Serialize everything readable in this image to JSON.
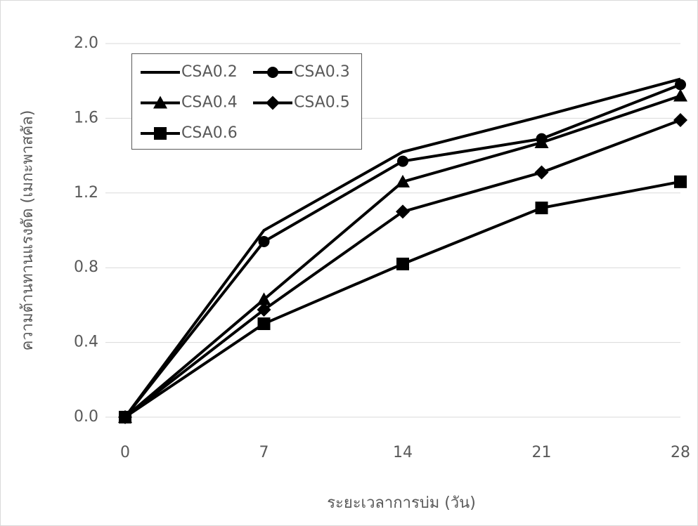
{
  "chart_data": {
    "type": "line",
    "x_label": "ระยะเวลาการบ่ม (วัน)",
    "y_label": "ความต้านทานแรงดัด (เมกะพาสคัล)",
    "x": [
      0,
      7,
      14,
      21,
      28
    ],
    "series": [
      {
        "name": "CSA0.2",
        "color": "#000000",
        "marker": "none",
        "values": [
          0,
          1.0,
          1.42,
          1.61,
          1.81
        ]
      },
      {
        "name": "CSA0.3",
        "color": "#000000",
        "marker": "circle",
        "values": [
          0,
          0.94,
          1.37,
          1.49,
          1.78
        ]
      },
      {
        "name": "CSA0.4",
        "color": "#000000",
        "marker": "triangle",
        "values": [
          0,
          0.63,
          1.26,
          1.47,
          1.72
        ]
      },
      {
        "name": "CSA0.5",
        "color": "#000000",
        "marker": "diamond",
        "values": [
          0,
          0.575,
          1.1,
          1.31,
          1.59
        ]
      },
      {
        "name": "CSA0.6",
        "color": "#000000",
        "marker": "square",
        "values": [
          0,
          0.5,
          0.82,
          1.12,
          1.26
        ]
      }
    ],
    "xlim": [
      0,
      28
    ],
    "xticks": [
      0,
      7,
      14,
      21,
      28
    ],
    "ylim": [
      0,
      2.0
    ],
    "yticks": [
      {
        "value": 0,
        "label": "0.0"
      },
      {
        "value": 0.4,
        "label": "0.4"
      },
      {
        "value": 0.8,
        "label": "0.8"
      },
      {
        "value": 1.2,
        "label": "1.2"
      },
      {
        "value": 1.6,
        "label": "1.6"
      },
      {
        "value": 2.0,
        "label": "2.0"
      }
    ],
    "grid": true,
    "legend": "top-left"
  }
}
